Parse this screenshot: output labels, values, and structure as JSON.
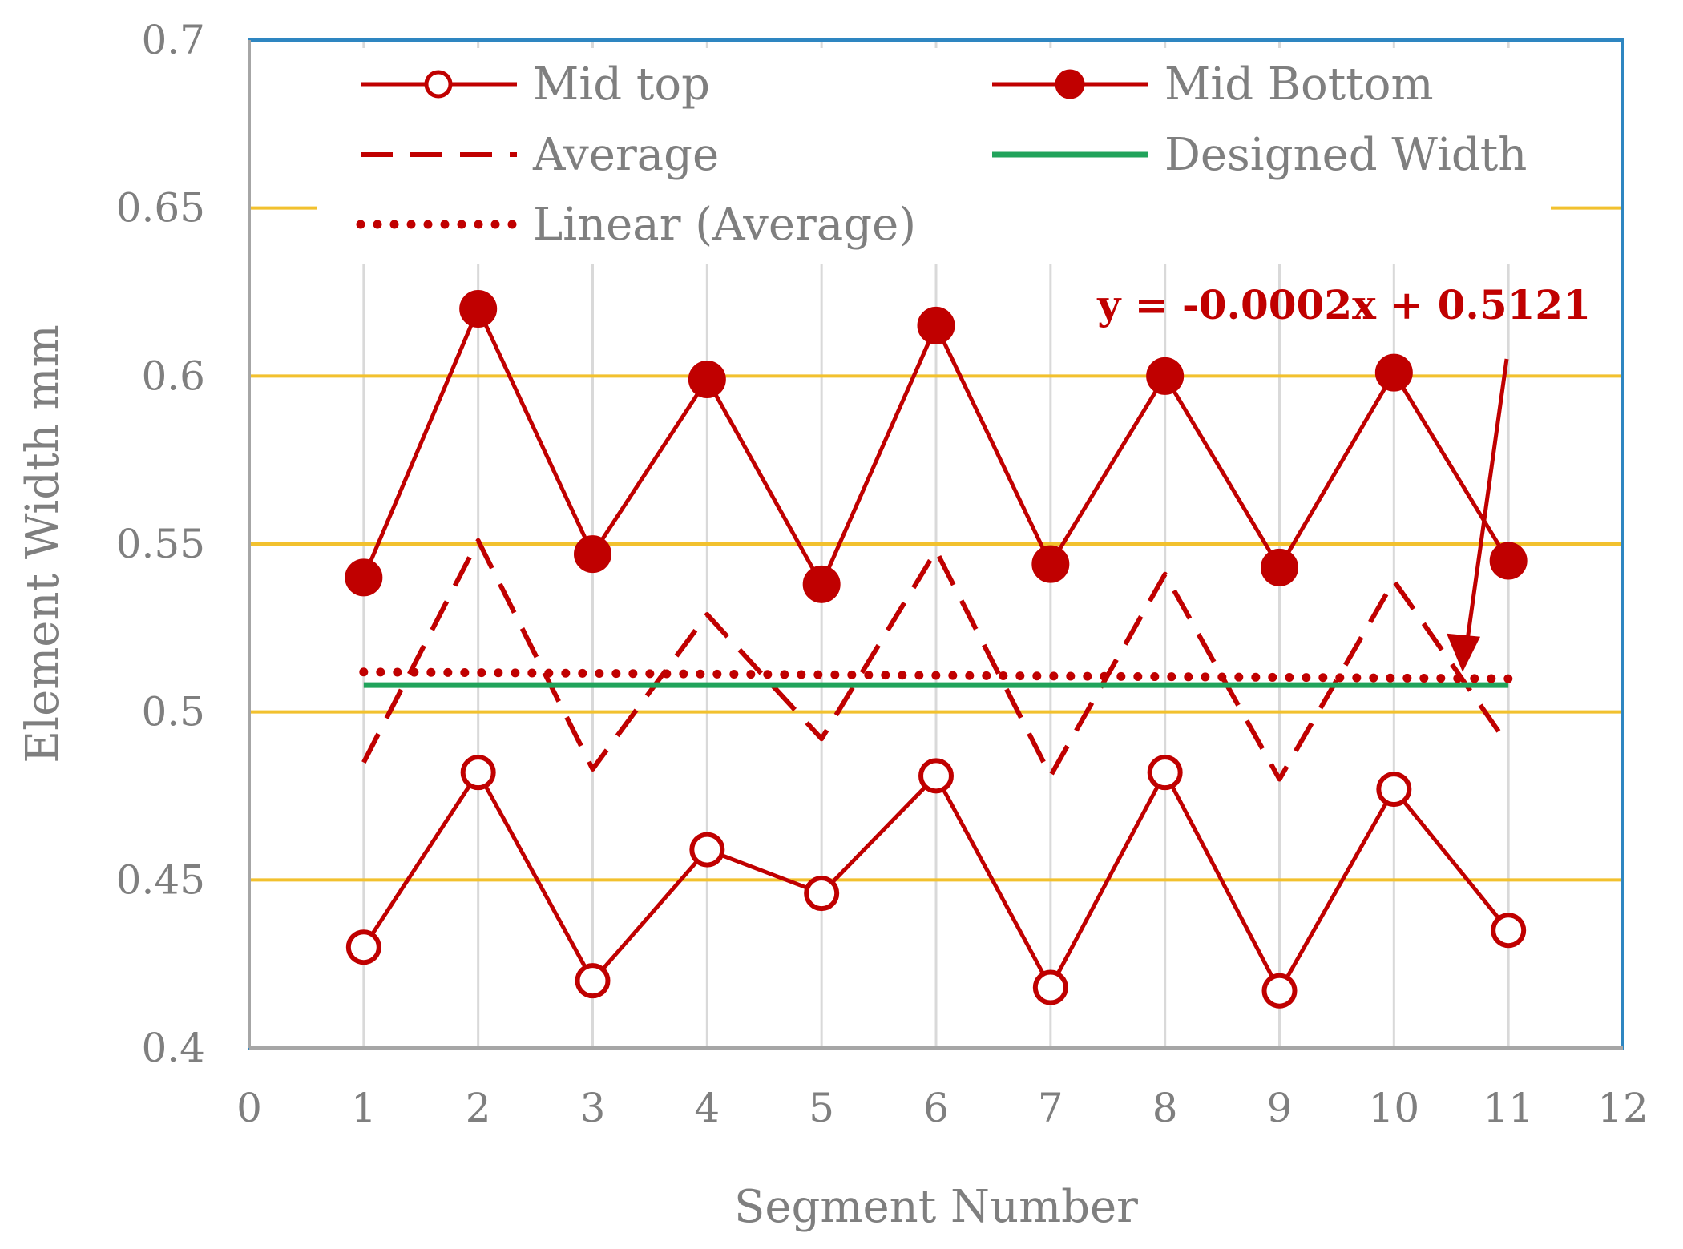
{
  "chart_data": {
    "type": "line",
    "title": "",
    "xlabel": "Segment Number",
    "ylabel": "Element Width mm",
    "xlim": [
      0,
      12
    ],
    "ylim": [
      0.4,
      0.7
    ],
    "x_ticks": [
      "0",
      "1",
      "2",
      "3",
      "4",
      "5",
      "6",
      "7",
      "8",
      "9",
      "10",
      "11",
      "12"
    ],
    "y_ticks": [
      "0.4",
      "0.45",
      "0.5",
      "0.55",
      "0.6",
      "0.65",
      "0.7"
    ],
    "grid": {
      "horizontal": true,
      "vertical": true,
      "horizontal_color": "#f2c12e",
      "vertical_color": "#d9d9d9"
    },
    "frame_color": "#2e86c1",
    "legend_position": "top",
    "series": [
      {
        "name": "Mid top",
        "style": "solid-line-open-circle-markers",
        "color": "#c00000",
        "x": [
          1,
          2,
          3,
          4,
          5,
          6,
          7,
          8,
          9,
          10,
          11
        ],
        "values": [
          0.43,
          0.482,
          0.42,
          0.459,
          0.446,
          0.481,
          0.418,
          0.482,
          0.417,
          0.477,
          0.435
        ]
      },
      {
        "name": "Mid Bottom",
        "style": "solid-line-filled-circle-markers",
        "color": "#c00000",
        "x": [
          1,
          2,
          3,
          4,
          5,
          6,
          7,
          8,
          9,
          10,
          11
        ],
        "values": [
          0.54,
          0.62,
          0.547,
          0.599,
          0.538,
          0.615,
          0.544,
          0.6,
          0.543,
          0.601,
          0.545
        ]
      },
      {
        "name": "Average",
        "style": "dashed-line",
        "color": "#c00000",
        "x": [
          1,
          2,
          3,
          4,
          5,
          6,
          7,
          8,
          9,
          10,
          11
        ],
        "values": [
          0.485,
          0.551,
          0.483,
          0.529,
          0.492,
          0.548,
          0.481,
          0.541,
          0.48,
          0.539,
          0.49
        ]
      },
      {
        "name": "Designed Width",
        "style": "solid-line",
        "color": "#21a35b",
        "x": [
          1,
          11
        ],
        "values": [
          0.508,
          0.508
        ]
      },
      {
        "name": "Linear (Average)",
        "style": "dotted-line",
        "color": "#c00000",
        "x": [
          1,
          11
        ],
        "values": [
          0.5119,
          0.5099
        ]
      }
    ],
    "annotations": [
      {
        "text": "y = -0.0002x + 0.5121",
        "color": "#c00000",
        "arrow_target": {
          "x": 10.6,
          "y": 0.51
        }
      }
    ]
  }
}
